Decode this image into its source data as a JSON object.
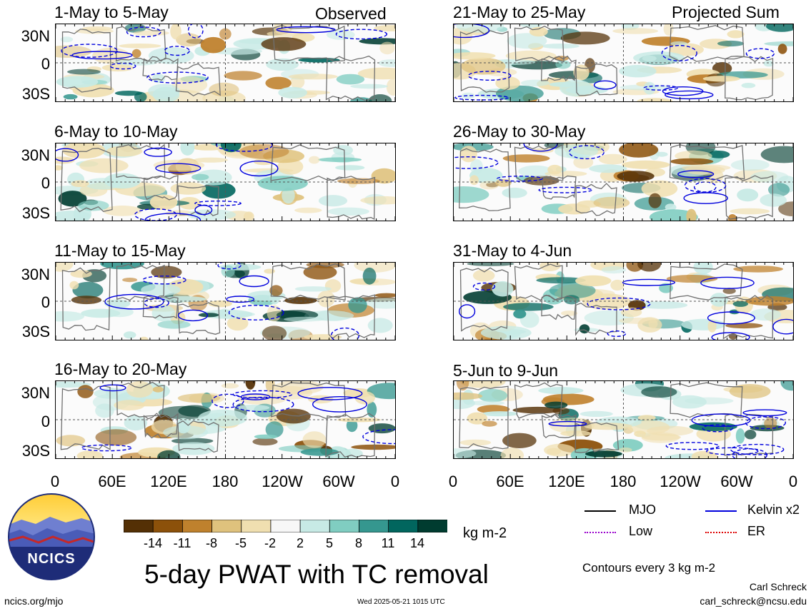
{
  "panels_left": [
    {
      "title": "1-May to 5-May",
      "tag": "Observed"
    },
    {
      "title": "6-May to 10-May",
      "tag": ""
    },
    {
      "title": "11-May to 15-May",
      "tag": ""
    },
    {
      "title": "16-May to 20-May",
      "tag": ""
    }
  ],
  "panels_right": [
    {
      "title": "21-May to 25-May",
      "tag": "Projected Sum"
    },
    {
      "title": "26-May to 30-May",
      "tag": ""
    },
    {
      "title": "31-May to 4-Jun",
      "tag": ""
    },
    {
      "title": "5-Jun to 9-Jun",
      "tag": ""
    }
  ],
  "lat_labels": [
    "30N",
    "0",
    "30S"
  ],
  "lon_labels": [
    "0",
    "60E",
    "120E",
    "180",
    "120W",
    "60W",
    "0"
  ],
  "colorbar": {
    "ticks": [
      "-14",
      "-11",
      "-8",
      "-5",
      "-2",
      "2",
      "5",
      "8",
      "11",
      "14"
    ],
    "colors": [
      "#543005",
      "#8c510a",
      "#bf812d",
      "#dfc27d",
      "#f0dfb0",
      "#f7f7f7",
      "#c7eae5",
      "#80cdc1",
      "#35978f",
      "#01665e",
      "#003c30"
    ],
    "unit": "kg m-2"
  },
  "legend": {
    "items": [
      {
        "label": "MJO",
        "color": "#000000"
      },
      {
        "label": "Kelvin x2",
        "color": "#0000dd"
      },
      {
        "label": "Low",
        "color": "#9900cc"
      },
      {
        "label": "ER",
        "color": "#dd0000"
      }
    ],
    "contours_note": "Contours every 3 kg m-2"
  },
  "main_title": "5-day PWAT with TC removal",
  "logo_text": "NCICS",
  "footer": {
    "site": "ncics.org/mjo",
    "timestamp": "Wed 2025-05-21 1015 UTC",
    "author": "Carl Schreck",
    "email": "carl_schreck@ncsu.edu"
  }
}
